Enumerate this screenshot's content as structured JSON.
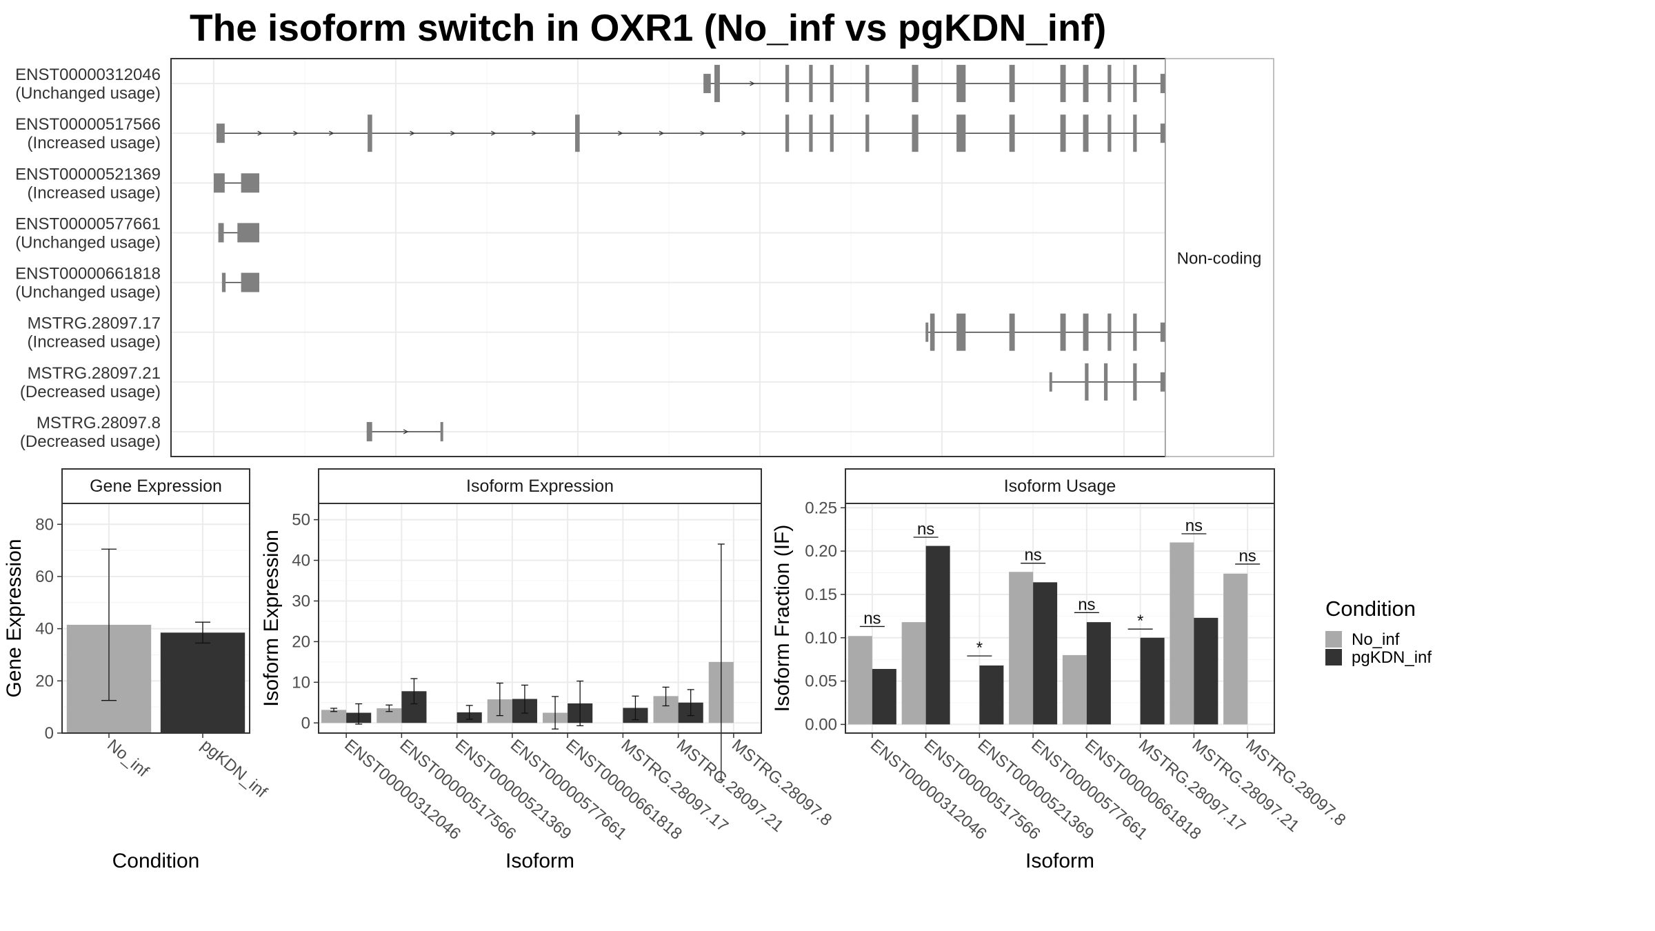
{
  "title": "The isoform switch in OXR1 (No_inf vs pgKDN_inf)",
  "colors": {
    "No_inf": "#aaaaaa",
    "pgKDN_inf": "#333333",
    "structure": "#808080",
    "grid": "#ebebeb",
    "panel_border": "#333333",
    "strip_fill": "#ffffff"
  },
  "chart_data": [
    {
      "type": "gene-structure",
      "facet_label": "Non-coding",
      "genomic_range": [
        0,
        1000
      ],
      "transcripts": [
        {
          "label": "ENST00000312046",
          "usage": "(Unchanged usage)",
          "exons": [
            [
              538,
              546
            ],
            [
              550,
              556
            ],
            [
              628,
              632
            ],
            [
              654,
              658
            ],
            [
              677,
              681
            ],
            [
              716,
              720
            ],
            [
              767,
              774
            ],
            [
              816,
              826
            ],
            [
              874,
              880
            ],
            [
              930,
              936
            ],
            [
              955,
              961
            ],
            [
              982,
              986
            ],
            [
              1010,
              1014
            ],
            [
              1040,
              1059
            ]
          ]
        },
        {
          "label": "ENST00000517566",
          "usage": "(Increased usage)",
          "exons": [
            [
              3,
              12
            ],
            [
              169,
              174
            ],
            [
              397,
              402
            ],
            [
              628,
              632
            ],
            [
              654,
              658
            ],
            [
              677,
              681
            ],
            [
              716,
              720
            ],
            [
              767,
              774
            ],
            [
              816,
              826
            ],
            [
              874,
              880
            ],
            [
              930,
              936
            ],
            [
              955,
              961
            ],
            [
              982,
              986
            ],
            [
              1010,
              1014
            ],
            [
              1040,
              1059
            ]
          ]
        },
        {
          "label": "ENST00000521369",
          "usage": "(Increased usage)",
          "exons": [
            [
              0,
              12
            ],
            [
              30,
              50
            ]
          ]
        },
        {
          "label": "ENST00000577661",
          "usage": "(Unchanged usage)",
          "exons": [
            [
              5,
              11
            ],
            [
              26,
              50
            ]
          ]
        },
        {
          "label": "ENST00000661818",
          "usage": "(Unchanged usage)",
          "exons": [
            [
              9,
              13
            ],
            [
              30,
              50
            ]
          ]
        },
        {
          "label": "MSTRG.28097.17",
          "usage": "(Increased usage)",
          "exons": [
            [
              782,
              784
            ],
            [
              787,
              792
            ],
            [
              816,
              826
            ],
            [
              874,
              880
            ],
            [
              930,
              936
            ],
            [
              955,
              961
            ],
            [
              982,
              986
            ],
            [
              1010,
              1014
            ],
            [
              1040,
              1059
            ]
          ]
        },
        {
          "label": "MSTRG.28097.21",
          "usage": "(Decreased usage)",
          "exons": [
            [
              918,
              920
            ],
            [
              957,
              961
            ],
            [
              978,
              982
            ],
            [
              1010,
              1014
            ],
            [
              1040,
              1059
            ]
          ]
        },
        {
          "label": "MSTRG.28097.8",
          "usage": "(Decreased usage)",
          "exons": [
            [
              168,
              174
            ],
            [
              249,
              251
            ]
          ]
        }
      ]
    },
    {
      "type": "bar",
      "strip": "Gene Expression",
      "xlabel": "Condition",
      "ylabel": "Gene Expression",
      "ylim": [
        0,
        88
      ],
      "yticks": [
        0,
        20,
        40,
        60,
        80
      ],
      "categories": [
        "No_inf",
        "pgKDN_inf"
      ],
      "values": [
        41.5,
        38.5
      ],
      "err_low": [
        12.5,
        34.5
      ],
      "err_high": [
        70.5,
        42.5
      ]
    },
    {
      "type": "bar",
      "strip": "Isoform Expression",
      "xlabel": "Isoform",
      "ylabel": "Isoform Expression",
      "ylim": [
        -2.5,
        54
      ],
      "yticks": [
        0,
        10,
        20,
        30,
        40,
        50
      ],
      "categories": [
        "ENST00000312046",
        "ENST00000517566",
        "ENST00000521369",
        "ENST00000577661",
        "ENST00000661818",
        "MSTRG.28097.17",
        "MSTRG.28097.21",
        "MSTRG.28097.8"
      ],
      "series": [
        {
          "name": "No_inf",
          "values": [
            3.2,
            3.6,
            0,
            5.8,
            2.5,
            0,
            6.6,
            15
          ],
          "err_low": [
            2.8,
            2.8,
            0,
            1.8,
            -1.5,
            0,
            4.2,
            -14
          ],
          "err_high": [
            3.6,
            4.4,
            0,
            9.8,
            6.5,
            0,
            8.8,
            44
          ]
        },
        {
          "name": "pgKDN_inf",
          "values": [
            2.5,
            7.8,
            2.6,
            5.9,
            4.8,
            3.7,
            5,
            0
          ],
          "err_low": [
            -0.3,
            4.7,
            0.9,
            2.4,
            -0.7,
            0.8,
            1.8,
            0
          ],
          "err_high": [
            4.7,
            10.9,
            4.3,
            9.3,
            10.3,
            6.6,
            8.2,
            0
          ]
        }
      ]
    },
    {
      "type": "bar",
      "strip": "Isoform Usage",
      "xlabel": "Isoform",
      "ylabel": "Isoform Fraction (IF)",
      "ylim": [
        -0.01,
        0.255
      ],
      "yticks": [
        0.0,
        0.05,
        0.1,
        0.15,
        0.2,
        0.25
      ],
      "ytick_labels": [
        "0.00",
        "0.05",
        "0.10",
        "0.15",
        "0.20",
        "0.25"
      ],
      "categories": [
        "ENST00000312046",
        "ENST00000517566",
        "ENST00000521369",
        "ENST00000577661",
        "ENST00000661818",
        "MSTRG.28097.17",
        "MSTRG.28097.21",
        "MSTRG.28097.8"
      ],
      "series": [
        {
          "name": "No_inf",
          "values": [
            0.102,
            0.118,
            0,
            0.176,
            0.08,
            0,
            0.21,
            0.174
          ]
        },
        {
          "name": "pgKDN_inf",
          "values": [
            0.064,
            0.206,
            0.068,
            0.164,
            0.118,
            0.1,
            0.123,
            0
          ]
        }
      ],
      "significance": [
        "ns",
        "ns",
        "*",
        "ns",
        "ns",
        "*",
        "ns",
        "ns"
      ],
      "significance_y": [
        0.113,
        0.216,
        0.079,
        0.186,
        0.129,
        0.11,
        0.22,
        0.185
      ]
    }
  ],
  "legend": {
    "title": "Condition",
    "placement": "right",
    "items": [
      "No_inf",
      "pgKDN_inf"
    ]
  }
}
